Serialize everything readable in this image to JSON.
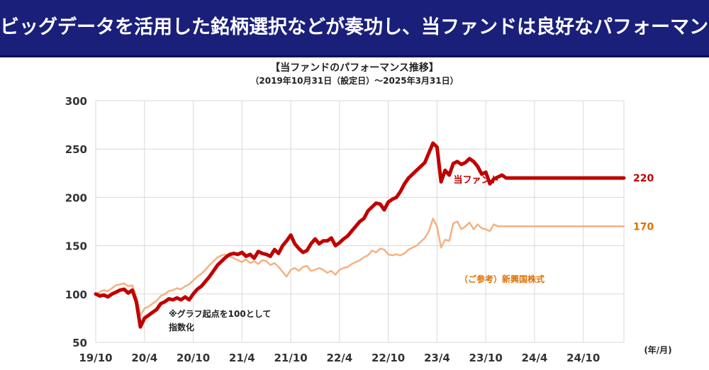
{
  "banner": {
    "title": "ビッグデータを活用した銘柄選択などが奏功し、当ファンドは良好なパフォーマンス"
  },
  "colors": {
    "banner_bg": "#1a1f7a",
    "fund": "#c00000",
    "benchmark": "#f4b183",
    "benchmark_label": "#e07000"
  },
  "chart_data": {
    "type": "line",
    "title": "【当ファンドのパフォーマンス推移】",
    "subtitle": "（2019年10月31日（設定日）～2025年3月31日）",
    "xlabel": "(年/月)",
    "ylabel": "",
    "ylim": [
      50,
      300
    ],
    "yticks": [
      50,
      100,
      150,
      200,
      250,
      300
    ],
    "xlim": [
      "2019-10",
      "2025-03"
    ],
    "xticks": [
      "19/10",
      "20/4",
      "20/10",
      "21/4",
      "21/10",
      "22/4",
      "22/10",
      "23/4",
      "23/10",
      "24/4",
      "24/10"
    ],
    "grid": true,
    "series": [
      {
        "name": "当ファンド",
        "color": "#c00000",
        "end_value": "220",
        "x": [
          0,
          0.5,
          1,
          1.5,
          2,
          2.5,
          3,
          3.5,
          4,
          4.5,
          5,
          5.5,
          6,
          6.5,
          7,
          7.5,
          8,
          8.5,
          9,
          9.5,
          10,
          10.5,
          11,
          11.5,
          12,
          12.5,
          13,
          13.5,
          14,
          14.5,
          15,
          15.5,
          16,
          16.5,
          17,
          17.5,
          18,
          18.5,
          19,
          19.5,
          20,
          20.5,
          21,
          21.5,
          22,
          22.5,
          23,
          23.5,
          24,
          24.5,
          25,
          25.5,
          26,
          26.5,
          27,
          27.5,
          28,
          28.5,
          29,
          29.5,
          30,
          30.5,
          31,
          31.5,
          32,
          32.5,
          33,
          33.5,
          34,
          34.5,
          35,
          35.5,
          36,
          36.5,
          37,
          37.5,
          38,
          38.5,
          39,
          39.5,
          40,
          40.5,
          41,
          41.5,
          42,
          42.5,
          43,
          43.5,
          44,
          44.5,
          45,
          45.5,
          46,
          46.5,
          47,
          47.5,
          48,
          48.5,
          49,
          49.5,
          50,
          50.5,
          51,
          51.5,
          52,
          52.5,
          53,
          53.5,
          54,
          54.5,
          55,
          55.5,
          56,
          56.5,
          57,
          57.5,
          58,
          58.5,
          59,
          59.5,
          60,
          60.5,
          61,
          61.5,
          62,
          62.5,
          63,
          63.5,
          64,
          64.5,
          65
        ],
        "values": [
          100,
          98,
          99,
          97,
          100,
          102,
          104,
          105,
          101,
          104,
          92,
          66,
          75,
          78,
          81,
          84,
          90,
          92,
          95,
          94,
          96,
          94,
          97,
          94,
          100,
          105,
          108,
          113,
          118,
          124,
          130,
          134,
          138,
          141,
          142,
          141,
          143,
          139,
          141,
          137,
          144,
          142,
          141,
          139,
          146,
          142,
          150,
          155,
          161,
          152,
          147,
          143,
          145,
          152,
          157,
          152,
          155,
          155,
          158,
          150,
          153,
          157,
          160,
          165,
          170,
          175,
          178,
          186,
          190,
          194,
          193,
          187,
          195,
          198,
          200,
          206,
          214,
          220,
          224,
          228,
          232,
          236,
          246,
          256,
          252,
          216,
          228,
          223,
          235,
          237,
          234,
          236,
          240,
          237,
          232,
          224,
          226,
          214,
          219,
          221,
          223,
          220,
          220,
          220,
          220,
          220,
          220,
          220,
          220,
          220,
          220,
          220,
          220,
          220,
          220,
          220,
          220,
          220,
          220,
          220,
          220,
          220,
          220,
          220,
          220,
          220,
          220,
          220,
          220,
          220,
          220
        ]
      },
      {
        "name": "（ご参考）新興国株式",
        "color": "#f4b183",
        "end_value": "170",
        "x": [
          0,
          0.5,
          1,
          1.5,
          2,
          2.5,
          3,
          3.5,
          4,
          4.5,
          5,
          5.5,
          6,
          6.5,
          7,
          7.5,
          8,
          8.5,
          9,
          9.5,
          10,
          10.5,
          11,
          11.5,
          12,
          12.5,
          13,
          13.5,
          14,
          14.5,
          15,
          15.5,
          16,
          16.5,
          17,
          17.5,
          18,
          18.5,
          19,
          19.5,
          20,
          20.5,
          21,
          21.5,
          22,
          22.5,
          23,
          23.5,
          24,
          24.5,
          25,
          25.5,
          26,
          26.5,
          27,
          27.5,
          28,
          28.5,
          29,
          29.5,
          30,
          30.5,
          31,
          31.5,
          32,
          32.5,
          33,
          33.5,
          34,
          34.5,
          35,
          35.5,
          36,
          36.5,
          37,
          37.5,
          38,
          38.5,
          39,
          39.5,
          40,
          40.5,
          41,
          41.5,
          42,
          42.5,
          43,
          43.5,
          44,
          44.5,
          45,
          45.5,
          46,
          46.5,
          47,
          47.5,
          48,
          48.5,
          49,
          49.5,
          50,
          50.5,
          51,
          51.5,
          52,
          52.5,
          53,
          53.5,
          54,
          54.5,
          55,
          55.5,
          56,
          56.5,
          57,
          57.5,
          58,
          58.5,
          59,
          59.5,
          60,
          60.5,
          61,
          61.5,
          62,
          62.5,
          63,
          63.5,
          64,
          64.5,
          65
        ],
        "values": [
          100,
          102,
          104,
          103,
          106,
          109,
          110,
          111,
          108,
          109,
          97,
          78,
          85,
          87,
          90,
          93,
          98,
          100,
          103,
          104,
          106,
          105,
          108,
          110,
          114,
          118,
          121,
          125,
          130,
          134,
          138,
          140,
          141,
          139,
          137,
          135,
          133,
          136,
          132,
          134,
          131,
          135,
          134,
          130,
          132,
          128,
          123,
          118,
          125,
          127,
          124,
          128,
          129,
          124,
          125,
          127,
          125,
          122,
          124,
          120,
          125,
          127,
          128,
          131,
          133,
          135,
          138,
          140,
          145,
          143,
          147,
          146,
          141,
          140,
          141,
          140,
          142,
          146,
          148,
          150,
          154,
          158,
          165,
          178,
          170,
          148,
          156,
          155,
          173,
          175,
          167,
          170,
          174,
          167,
          172,
          168,
          167,
          165,
          172,
          170,
          170,
          170,
          170,
          170,
          170,
          170,
          170,
          170,
          170,
          170,
          170,
          170,
          170,
          170,
          170,
          170,
          170,
          170,
          170,
          170,
          170,
          170,
          170,
          170,
          170,
          170,
          170,
          170,
          170,
          170,
          170
        ]
      }
    ],
    "annotation": "※グラフ起点を100として指数化"
  }
}
